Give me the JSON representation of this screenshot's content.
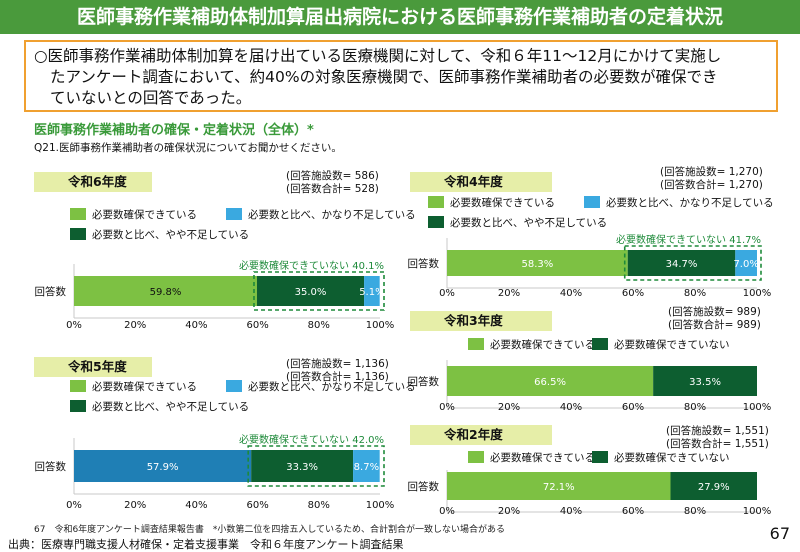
{
  "title": "医師事務作業補助体制加算届出病院における医師事務作業補助者の定着状況",
  "summary_line1": "○医師事務作業補助体制加算を届け出ている医療機関に対して、令和６年11〜12月にかけて実施し",
  "summary_line2": "たアンケート調査において、約40%の対象医療機関で、医師事務作業補助者の必要数が確保でき",
  "summary_line3": "ていないとの回答であった。",
  "subtitle": "医師事務作業補助者の確保・定着状況（全体）*",
  "question": "Q21.医師事務作業補助者の確保状況についてお聞かせください。",
  "footnote": "67　令和6年度アンケート調査結果報告書　*小数第二位を四捨五入しているため、合計割合が一致しない場合がある",
  "source": "出典：医療専門職支援人材確保・定着支援事業　令和６年度アンケート調査結果",
  "page_number": "67",
  "colors": {
    "secured": "#7dc143",
    "lacking_slightly": "#0d5e30",
    "lacking_greatly": "#3aa9e0",
    "not_secured": "#0d5e30",
    "highlight_r5": "#1f7fb5"
  },
  "chart_data": [
    {
      "id": "r6",
      "type": "bar",
      "orientation": "horizontal",
      "stacked": true,
      "year_label": "令和6年度",
      "facilities": "(回答施設数= 586)",
      "total": "(回答数合計= 528)",
      "category": "回答数",
      "xlim": [
        0,
        100
      ],
      "xticks": [
        "0%",
        "20%",
        "40%",
        "60%",
        "80%",
        "100%"
      ],
      "series": [
        {
          "name": "必要数確保できている",
          "value": 59.8,
          "label": "59.8%"
        },
        {
          "name": "必要数と比べ、やや不足している",
          "value": 35.0,
          "label": "35.0%"
        },
        {
          "name": "必要数と比べ、かなり不足している",
          "value": 5.1,
          "label": "5.1%"
        }
      ],
      "annotation": "必要数確保できていない 40.1%"
    },
    {
      "id": "r5",
      "type": "bar",
      "orientation": "horizontal",
      "stacked": true,
      "year_label": "令和5年度",
      "facilities": "(回答施設数= 1,136)",
      "total": "(回答数合計= 1,136)",
      "category": "回答数",
      "xlim": [
        0,
        100
      ],
      "xticks": [
        "0%",
        "20%",
        "40%",
        "60%",
        "80%",
        "100%"
      ],
      "series": [
        {
          "name": "必要数確保できている",
          "value": 57.9,
          "label": "57.9%"
        },
        {
          "name": "必要数と比べ、やや不足している",
          "value": 33.3,
          "label": "33.3%"
        },
        {
          "name": "必要数と比べ、かなり不足している",
          "value": 8.7,
          "label": "8.7%"
        }
      ],
      "annotation": "必要数確保できていない 42.0%"
    },
    {
      "id": "r4",
      "type": "bar",
      "orientation": "horizontal",
      "stacked": true,
      "year_label": "令和4年度",
      "facilities": "(回答施設数= 1,270)",
      "total": "(回答数合計= 1,270)",
      "category": "回答数",
      "xlim": [
        0,
        100
      ],
      "xticks": [
        "0%",
        "20%",
        "40%",
        "60%",
        "80%",
        "100%"
      ],
      "series": [
        {
          "name": "必要数確保できている",
          "value": 58.3,
          "label": "58.3%"
        },
        {
          "name": "必要数と比べ、やや不足している",
          "value": 34.7,
          "label": "34.7%"
        },
        {
          "name": "必要数と比べ、かなり不足している",
          "value": 7.0,
          "label": "7.0%"
        }
      ],
      "annotation": "必要数確保できていない 41.7%"
    },
    {
      "id": "r3",
      "type": "bar",
      "orientation": "horizontal",
      "stacked": true,
      "year_label": "令和3年度",
      "facilities": "(回答施設数= 989)",
      "total": "(回答数合計= 989)",
      "category": "回答数",
      "xlim": [
        0,
        100
      ],
      "xticks": [
        "0%",
        "20%",
        "40%",
        "60%",
        "80%",
        "100%"
      ],
      "series": [
        {
          "name": "必要数確保できている",
          "value": 66.5,
          "label": "66.5%"
        },
        {
          "name": "必要数確保できていない",
          "value": 33.5,
          "label": "33.5%"
        }
      ]
    },
    {
      "id": "r2",
      "type": "bar",
      "orientation": "horizontal",
      "stacked": true,
      "year_label": "令和2年度",
      "facilities": "(回答施設数= 1,551)",
      "total": "(回答数合計= 1,551)",
      "category": "回答数",
      "xlim": [
        0,
        100
      ],
      "xticks": [
        "0%",
        "20%",
        "40%",
        "60%",
        "80%",
        "100%"
      ],
      "series": [
        {
          "name": "必要数確保できている",
          "value": 72.1,
          "label": "72.1%"
        },
        {
          "name": "必要数確保できていない",
          "value": 27.9,
          "label": "27.9%"
        }
      ]
    }
  ]
}
